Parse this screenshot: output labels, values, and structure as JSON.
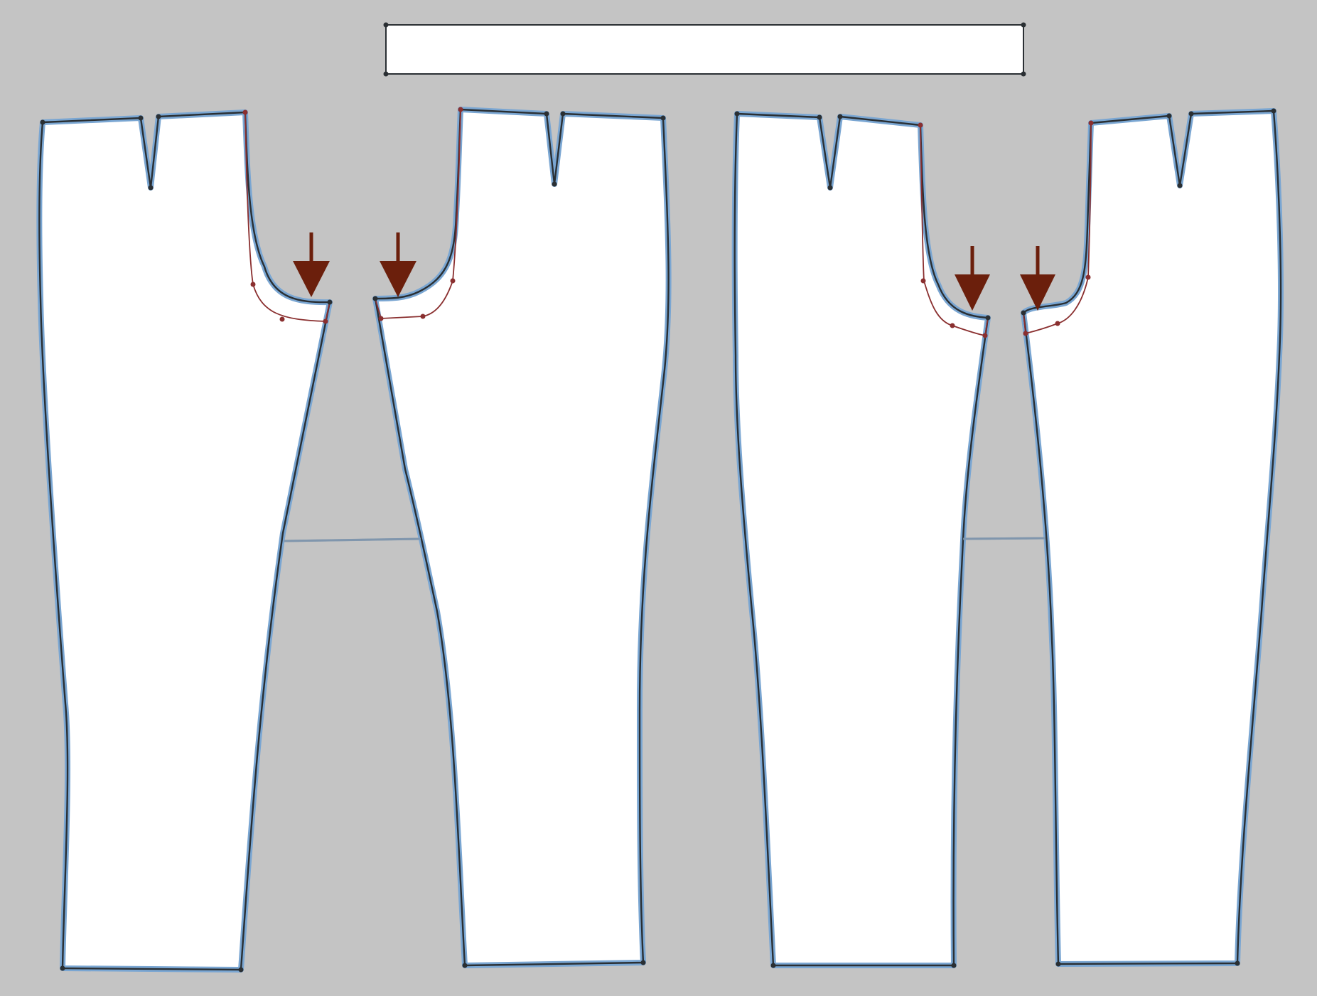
{
  "diagram": {
    "description_visible_text": "",
    "pieces": [
      {
        "id": "waistband",
        "kind": "rectangle"
      },
      {
        "id": "front-left",
        "kind": "trouser-front",
        "modified_crotch_curve": true,
        "dart": true
      },
      {
        "id": "back-left",
        "kind": "trouser-back",
        "modified_crotch_curve": true,
        "dart": true
      },
      {
        "id": "front-right",
        "kind": "trouser-front",
        "modified_crotch_curve": true,
        "dart": true
      },
      {
        "id": "back-right",
        "kind": "trouser-back",
        "modified_crotch_curve": true,
        "dart": true
      }
    ],
    "arrow_count": 4,
    "knee_lines": 2
  },
  "colors": {
    "background": "#c4c4c4",
    "piece_fill": "#ffffff",
    "highlight": "#7aa6d2",
    "outline": "#2a2f33",
    "alteration": "#8a2f2f",
    "arrow": "#6b1f0c",
    "knee_line": "#7f96ad"
  }
}
